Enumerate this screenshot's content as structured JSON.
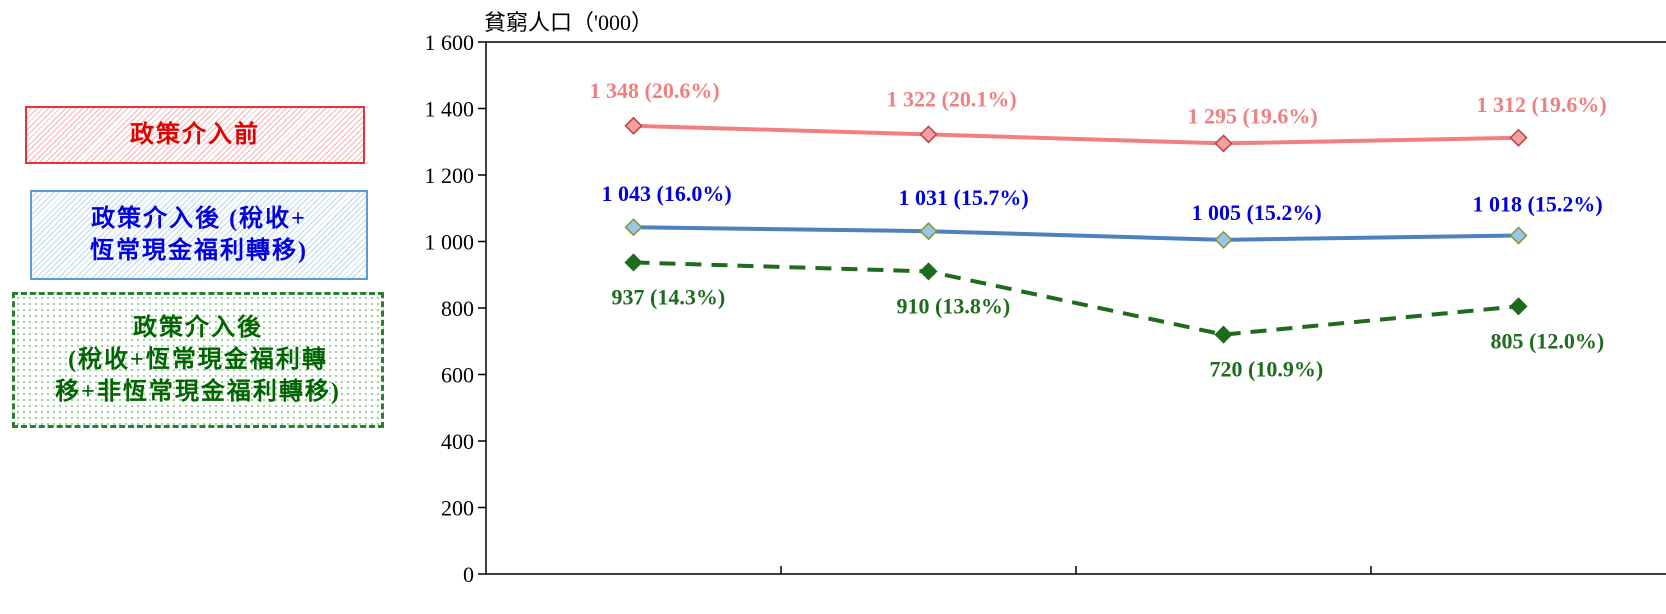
{
  "legend": {
    "before": "政策介入前",
    "after_recurrent": "政策介入後 (稅收+\n恆常現金福利轉移)",
    "after_all": "政策介入後\n(稅收+恆常現金福利轉\n移+非恆常現金福利轉移)"
  },
  "chart_data": {
    "type": "line",
    "ylabel": "貧窮人口（'000）",
    "ylim": [
      0,
      1600
    ],
    "yticks": [
      0,
      200,
      400,
      600,
      800,
      1000,
      1200,
      1400,
      1600
    ],
    "ytick_labels": [
      "0",
      "200",
      "400",
      "600",
      "800",
      "1 000",
      "1 200",
      "1 400",
      "1 600"
    ],
    "categories": [
      "",
      "",
      "",
      ""
    ],
    "series": [
      {
        "name": "政策介入前",
        "values": [
          1348,
          1322,
          1295,
          1312
        ],
        "labels": [
          "1 348 (20.6%)",
          "1 322  (20.1%)",
          "1 295 (19.6%)",
          "1 312 (19.6%)"
        ],
        "color": "#f08080",
        "marker_fill": "#f4a0a0",
        "marker_edge": "#c04040",
        "style": "solid",
        "label_color": "#f08080"
      },
      {
        "name": "政策介入後 (稅收+恆常現金福利轉移)",
        "values": [
          1043,
          1031,
          1005,
          1018
        ],
        "labels": [
          "1 043 (16.0%)",
          "1 031 (15.7%)",
          "1 005 (15.2%)",
          "1 018  (15.2%)"
        ],
        "color": "#4f81bd",
        "marker_fill": "#9dc3e6",
        "marker_edge": "#7a9a3a",
        "style": "solid",
        "label_color": "#0000e0"
      },
      {
        "name": "政策介入後 (稅收+恆常現金福利轉移+非恆常現金福利轉移)",
        "values": [
          937,
          910,
          720,
          805
        ],
        "labels": [
          "937 (14.3%)",
          "910 (13.8%)",
          "720 (10.9%)",
          "805 (12.0%)"
        ],
        "color": "#1e6b1e",
        "marker_fill": "#1e6b1e",
        "marker_edge": "#1e6b1e",
        "style": "dashed",
        "label_color": "#1e6b1e"
      }
    ],
    "grid": false
  }
}
